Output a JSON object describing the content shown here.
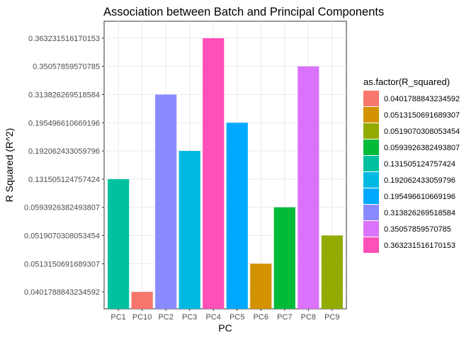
{
  "chart_data": {
    "type": "bar",
    "title": "Association between Batch and Principal Components",
    "xlabel": "PC",
    "ylabel": "R Squared (R^2)",
    "y_scale": "discrete",
    "grid": true,
    "legend_position": "right",
    "legend_title": "as.factor(R_squared)",
    "y_levels": [
      "0.0401788843234592",
      "0.0513150691689307",
      "0.0519070308053454",
      "0.0593926382493807",
      "0.131505124757424",
      "0.192062433059796",
      "0.195496610669196",
      "0.313826269518584",
      "0.35057859570785",
      "0.363231516170153"
    ],
    "categories": [
      "PC1",
      "PC10",
      "PC2",
      "PC3",
      "PC4",
      "PC5",
      "PC6",
      "PC7",
      "PC8",
      "PC9"
    ],
    "values": [
      "0.131505124757424",
      "0.0401788843234592",
      "0.313826269518584",
      "0.192062433059796",
      "0.363231516170153",
      "0.195496610669196",
      "0.0513150691689307",
      "0.0593926382493807",
      "0.35057859570785",
      "0.0519070308053454"
    ],
    "legend": [
      {
        "label": "0.0401788843234592",
        "color": "#F8766D"
      },
      {
        "label": "0.0513150691689307",
        "color": "#D39200"
      },
      {
        "label": "0.0519070308053454",
        "color": "#93AA00"
      },
      {
        "label": "0.0593926382493807",
        "color": "#00BA38"
      },
      {
        "label": "0.131505124757424",
        "color": "#00C19F"
      },
      {
        "label": "0.192062433059796",
        "color": "#00B9E3"
      },
      {
        "label": "0.195496610669196",
        "color": "#00A9FF"
      },
      {
        "label": "0.313826269518584",
        "color": "#8A8AFF"
      },
      {
        "label": "0.35057859570785",
        "color": "#DB72FB"
      },
      {
        "label": "0.363231516170153",
        "color": "#FF4FB8"
      }
    ]
  }
}
